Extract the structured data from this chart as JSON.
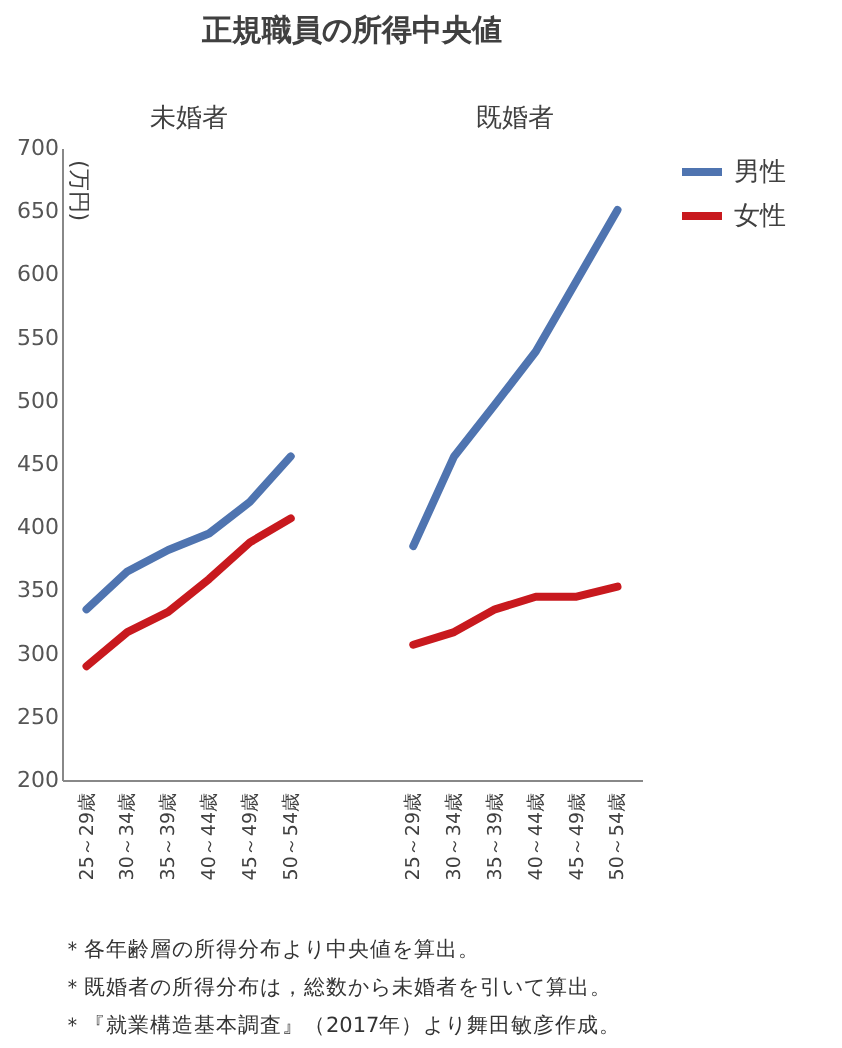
{
  "chart_data": {
    "type": "line",
    "title": "正規職員の所得中央値",
    "ylabel": "(万円)",
    "categories": [
      "25～29歳",
      "30～34歳",
      "35～39歳",
      "40～44歳",
      "45～49歳",
      "50～54歳",
      null,
      null,
      "25～29歳",
      "30～34歳",
      "35～39歳",
      "40～44歳",
      "45～49歳",
      "50～54歳"
    ],
    "series": [
      {
        "name": "男性",
        "color": "#4f74b0",
        "values": [
          335,
          365,
          382,
          395,
          420,
          456,
          null,
          null,
          385,
          456,
          497,
          539,
          595,
          651
        ]
      },
      {
        "name": "女性",
        "color": "#c8191e",
        "values": [
          290,
          317,
          333,
          359,
          388,
          407,
          null,
          null,
          307,
          317,
          335,
          345,
          345,
          353
        ]
      }
    ],
    "ylim": [
      200,
      700
    ],
    "yticks": [
      200,
      250,
      300,
      350,
      400,
      450,
      500,
      550,
      600,
      650,
      700
    ],
    "grid": false,
    "legend": "right",
    "marker": "none",
    "line_style": "solid",
    "annotations": [
      "未婚者",
      "既婚者",
      "＊各年齢層の所得分布より中央値を算出。",
      "＊既婚者の所得分布は，総数から未婚者を引いて算出。",
      "＊『就業構造基本調査』（2017年）より舞田敏彦作成。"
    ]
  }
}
